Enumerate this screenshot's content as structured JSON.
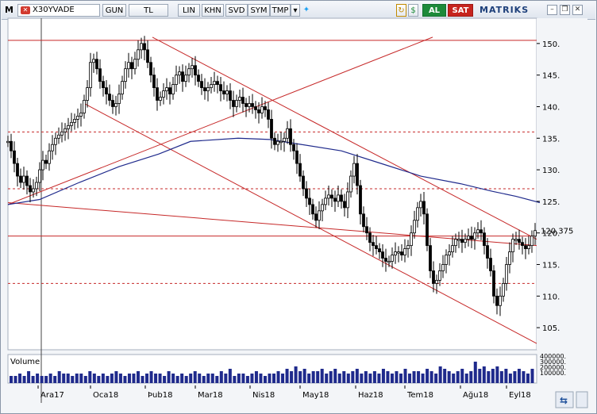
{
  "toolbar": {
    "logo": "M",
    "symbol": "X30YVADE",
    "buttons": [
      "GUN",
      "TL",
      "LIN",
      "KHN",
      "SVD",
      "SYM",
      "TMP"
    ],
    "buy_label": "AL",
    "sell_label": "SAT",
    "brand": "MATRIKS",
    "icons": [
      "twitter-icon",
      "refresh-icon",
      "dollar-icon",
      "window-minimize-icon",
      "window-restore-icon",
      "window-close-icon"
    ]
  },
  "chart_data": {
    "type": "candlestick",
    "x_tick_labels": [
      "Ara17",
      "Oca18",
      "Þub18",
      "Mar18",
      "Nis18",
      "May18",
      "Haz18",
      "Tem18",
      "Ağu18",
      "Eyl18"
    ],
    "y_tick_labels": [
      "105.",
      "110.",
      "115.",
      "120.",
      "125.",
      "130.",
      "135.",
      "140.",
      "145.",
      "150."
    ],
    "y_ticks": [
      105,
      110,
      115,
      120,
      125,
      130,
      135,
      140,
      145,
      150
    ],
    "ylim": [
      101.5,
      154
    ],
    "last_price": 120.375,
    "last_price_label": "120.375",
    "horizontal_levels": [
      150.5,
      136,
      127,
      119.5,
      112
    ],
    "moving_average": [
      [
        0,
        124.5
      ],
      [
        40,
        125.3
      ],
      [
        90,
        128
      ],
      [
        140,
        130.5
      ],
      [
        190,
        132.5
      ],
      [
        230,
        134.5
      ],
      [
        290,
        135
      ],
      [
        330,
        134.8
      ],
      [
        370,
        134
      ],
      [
        420,
        133
      ],
      [
        470,
        131
      ],
      [
        520,
        129
      ],
      [
        570,
        127.8
      ],
      [
        610,
        126.6
      ],
      [
        640,
        125.8
      ],
      [
        670,
        124.8
      ]
    ],
    "prices": [
      [
        0,
        134.5
      ],
      [
        4,
        133
      ],
      [
        8,
        131
      ],
      [
        12,
        129
      ],
      [
        16,
        128
      ],
      [
        20,
        129
      ],
      [
        24,
        127.5
      ],
      [
        28,
        126.5
      ],
      [
        32,
        127
      ],
      [
        36,
        128
      ],
      [
        40,
        130
      ],
      [
        44,
        131.5
      ],
      [
        48,
        131
      ],
      [
        52,
        133
      ],
      [
        56,
        134
      ],
      [
        60,
        135
      ],
      [
        64,
        135.5
      ],
      [
        68,
        136
      ],
      [
        72,
        136.5
      ],
      [
        76,
        137
      ],
      [
        80,
        137.5
      ],
      [
        84,
        138
      ],
      [
        88,
        138.5
      ],
      [
        92,
        139
      ],
      [
        96,
        141
      ],
      [
        100,
        143
      ],
      [
        104,
        147
      ],
      [
        108,
        147.5
      ],
      [
        112,
        146
      ],
      [
        116,
        144
      ],
      [
        120,
        143
      ],
      [
        124,
        142
      ],
      [
        128,
        141
      ],
      [
        132,
        140
      ],
      [
        136,
        140.5
      ],
      [
        140,
        142
      ],
      [
        144,
        144
      ],
      [
        148,
        146
      ],
      [
        152,
        147
      ],
      [
        156,
        146
      ],
      [
        160,
        147.5
      ],
      [
        164,
        149
      ],
      [
        168,
        150
      ],
      [
        172,
        149
      ],
      [
        176,
        147
      ],
      [
        180,
        145
      ],
      [
        184,
        143
      ],
      [
        188,
        141
      ],
      [
        192,
        141.5
      ],
      [
        196,
        142.5
      ],
      [
        200,
        143
      ],
      [
        204,
        142
      ],
      [
        208,
        143.5
      ],
      [
        212,
        145
      ],
      [
        216,
        145.5
      ],
      [
        220,
        144
      ],
      [
        224,
        145
      ],
      [
        228,
        146
      ],
      [
        232,
        146.5
      ],
      [
        236,
        145
      ],
      [
        240,
        144
      ],
      [
        244,
        143
      ],
      [
        248,
        142.5
      ],
      [
        252,
        143
      ],
      [
        256,
        143.5
      ],
      [
        260,
        144
      ],
      [
        264,
        143.5
      ],
      [
        268,
        142.5
      ],
      [
        272,
        142
      ],
      [
        276,
        142.5
      ],
      [
        280,
        141
      ],
      [
        284,
        140
      ],
      [
        288,
        141
      ],
      [
        292,
        141.5
      ],
      [
        296,
        140.5
      ],
      [
        300,
        140
      ],
      [
        304,
        140.5
      ],
      [
        308,
        140
      ],
      [
        312,
        139.5
      ],
      [
        316,
        139
      ],
      [
        320,
        140
      ],
      [
        324,
        139.5
      ],
      [
        328,
        138
      ],
      [
        332,
        135
      ],
      [
        336,
        134
      ],
      [
        340,
        134.5
      ],
      [
        344,
        134.5
      ],
      [
        348,
        135
      ],
      [
        352,
        136.5
      ],
      [
        356,
        134
      ],
      [
        360,
        133
      ],
      [
        364,
        131
      ],
      [
        368,
        129
      ],
      [
        372,
        127
      ],
      [
        376,
        125.5
      ],
      [
        380,
        124.5
      ],
      [
        384,
        123
      ],
      [
        388,
        122
      ],
      [
        392,
        123.5
      ],
      [
        396,
        124.5
      ],
      [
        400,
        125.5
      ],
      [
        404,
        126
      ],
      [
        408,
        125.5
      ],
      [
        412,
        125
      ],
      [
        416,
        126
      ],
      [
        420,
        125
      ],
      [
        424,
        124
      ],
      [
        428,
        126.5
      ],
      [
        432,
        129
      ],
      [
        436,
        131
      ],
      [
        440,
        127.5
      ],
      [
        444,
        123
      ],
      [
        448,
        121
      ],
      [
        452,
        120
      ],
      [
        456,
        118.5
      ],
      [
        460,
        118
      ],
      [
        464,
        117.5
      ],
      [
        468,
        117
      ],
      [
        472,
        116
      ],
      [
        476,
        115.5
      ],
      [
        480,
        115.5
      ],
      [
        484,
        116.5
      ],
      [
        488,
        117
      ],
      [
        492,
        117
      ],
      [
        496,
        116.5
      ],
      [
        500,
        117.5
      ],
      [
        504,
        118
      ],
      [
        508,
        120
      ],
      [
        512,
        122
      ],
      [
        516,
        124
      ],
      [
        520,
        125
      ],
      [
        524,
        123
      ],
      [
        528,
        118
      ],
      [
        532,
        114
      ],
      [
        536,
        112
      ],
      [
        540,
        112.5
      ],
      [
        544,
        114
      ],
      [
        548,
        115
      ],
      [
        552,
        116.5
      ],
      [
        556,
        117
      ],
      [
        560,
        118
      ],
      [
        564,
        119
      ],
      [
        568,
        119
      ],
      [
        572,
        118.5
      ],
      [
        576,
        119
      ],
      [
        580,
        119.5
      ],
      [
        584,
        119
      ],
      [
        588,
        120
      ],
      [
        592,
        120.5
      ],
      [
        596,
        120
      ],
      [
        600,
        118
      ],
      [
        604,
        116
      ],
      [
        608,
        114
      ],
      [
        612,
        110
      ],
      [
        616,
        108.5
      ],
      [
        620,
        110
      ],
      [
        624,
        112
      ],
      [
        628,
        115
      ],
      [
        632,
        117
      ],
      [
        636,
        119
      ],
      [
        640,
        119
      ],
      [
        644,
        118.5
      ],
      [
        648,
        118
      ],
      [
        652,
        117.5
      ],
      [
        656,
        118
      ],
      [
        660,
        119.5
      ],
      [
        664,
        120.375
      ]
    ]
  },
  "volume_panel": {
    "label": "Volume",
    "y_tick_labels": [
      "400000.",
      "300000.",
      "200000.",
      "100000."
    ],
    "bars": [
      3,
      3,
      4,
      3,
      5,
      3,
      4,
      3,
      3,
      4,
      3,
      5,
      4,
      4,
      3,
      4,
      4,
      3,
      5,
      4,
      3,
      4,
      3,
      4,
      5,
      4,
      3,
      4,
      4,
      5,
      3,
      4,
      5,
      4,
      4,
      3,
      5,
      4,
      3,
      4,
      3,
      4,
      5,
      4,
      3,
      4,
      4,
      3,
      5,
      4,
      6,
      3,
      4,
      4,
      3,
      4,
      5,
      4,
      3,
      4,
      4,
      5,
      4,
      6,
      5,
      7,
      5,
      6,
      4,
      5,
      5,
      6,
      4,
      5,
      6,
      4,
      5,
      4,
      5,
      6,
      4,
      5,
      4,
      5,
      4,
      6,
      5,
      4,
      5,
      4,
      6,
      4,
      5,
      5,
      4,
      6,
      5,
      4,
      7,
      6,
      5,
      4,
      5,
      6,
      4,
      5,
      9,
      6,
      7,
      5,
      6,
      7,
      5,
      6,
      4,
      5,
      6,
      5,
      4,
      6
    ]
  }
}
